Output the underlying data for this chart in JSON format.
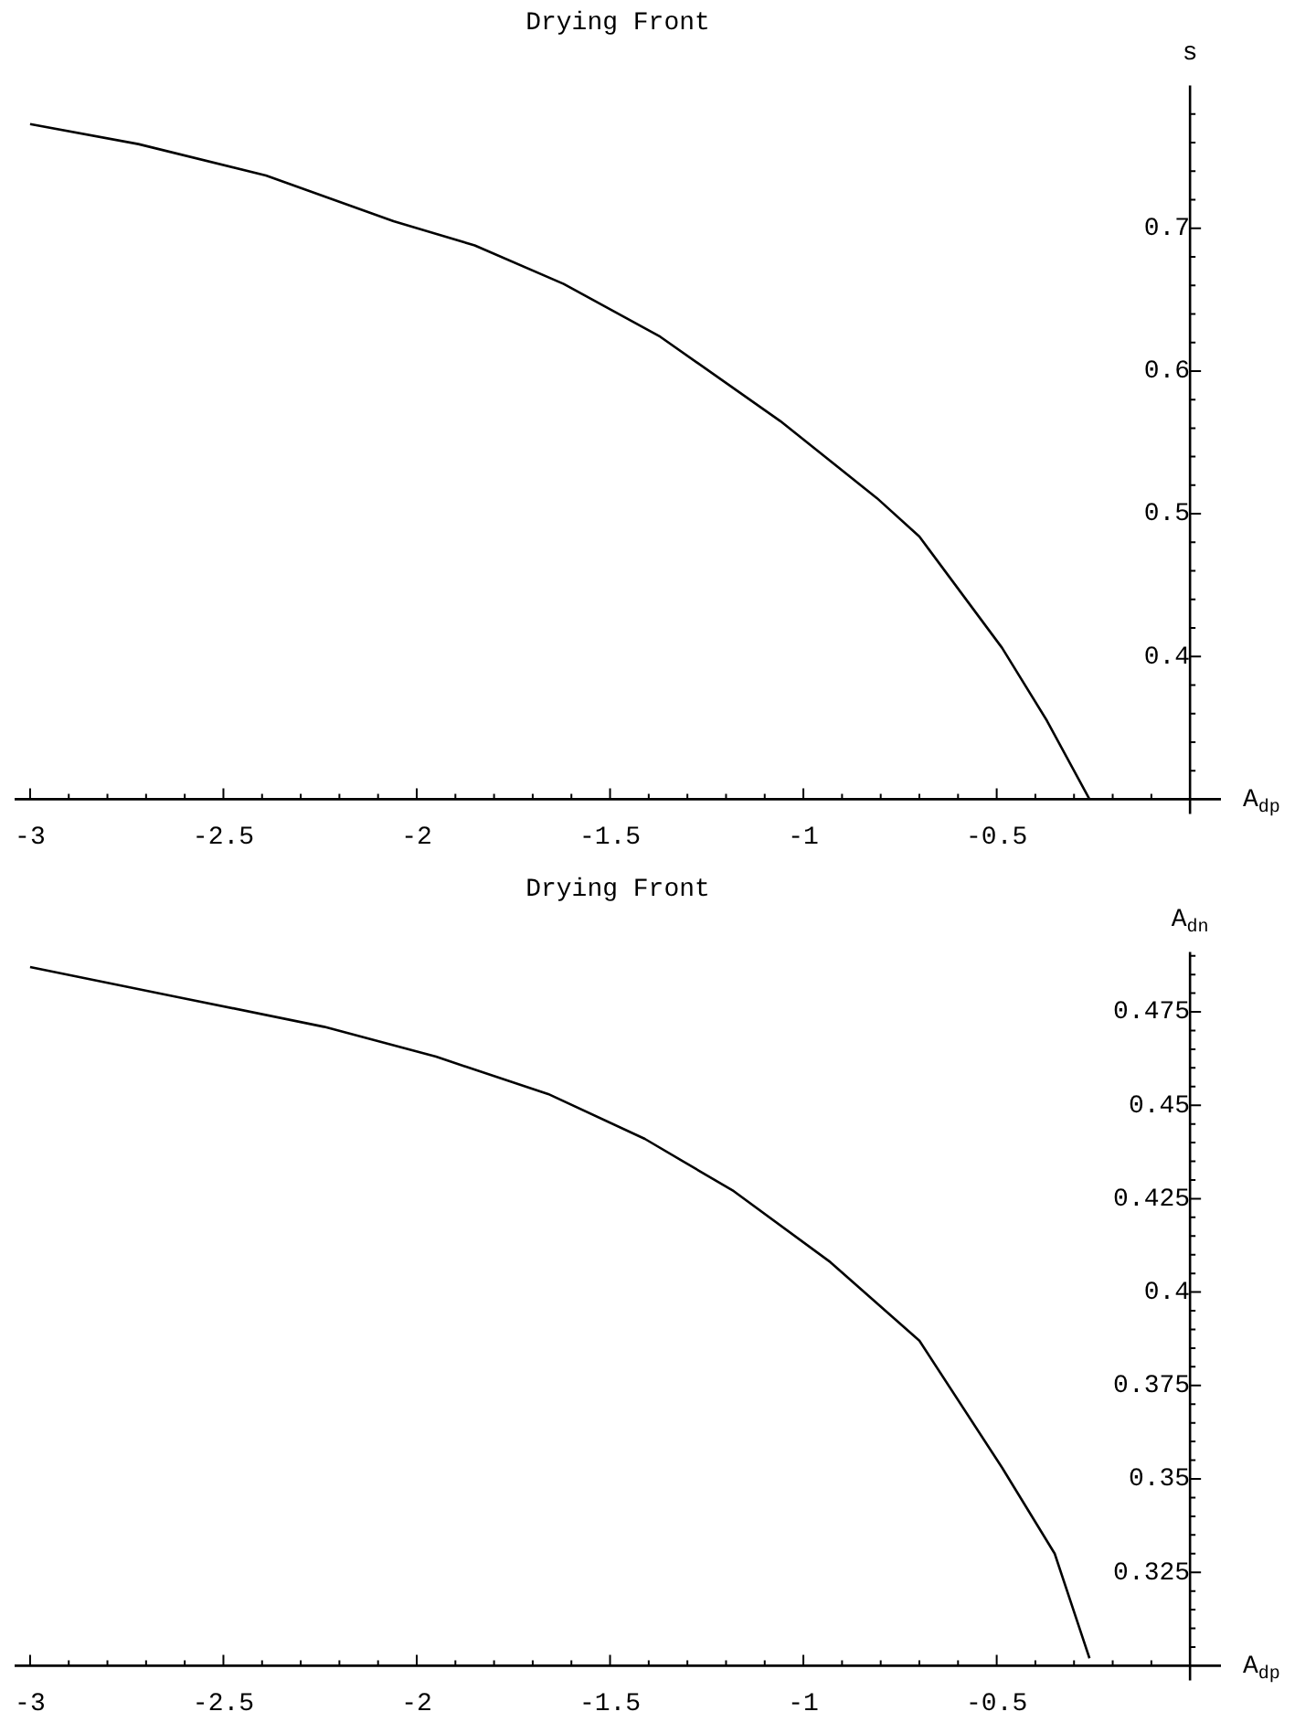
{
  "chart_data": [
    {
      "type": "line",
      "title": "Drying Front",
      "xlabel": "A$_{dp}$",
      "ylabel": "s",
      "x": [
        -3,
        -2.72,
        -2.39,
        -2.06,
        -1.85,
        -1.62,
        -1.37,
        -1.06,
        -0.81,
        -0.7,
        -0.486,
        -0.37,
        -0.26
      ],
      "series": [
        {
          "color": "#000000",
          "values": [
            0.773,
            0.759,
            0.737,
            0.705,
            0.688,
            0.661,
            0.624,
            0.565,
            0.511,
            0.484,
            0.406,
            0.355,
            0.3
          ]
        }
      ],
      "xlim": [
        -3.04,
        0.08
      ],
      "ylim": [
        0.3,
        0.8
      ],
      "xticks": [
        -3,
        {
          "value": -2.9,
          "label": null
        },
        {
          "value": -2.8,
          "label": null
        },
        {
          "value": -2.7,
          "label": null
        },
        {
          "value": -2.6,
          "label": null
        },
        -2.5,
        {
          "value": -2.4,
          "label": null
        },
        {
          "value": -2.3,
          "label": null
        },
        {
          "value": -2.2,
          "label": null
        },
        {
          "value": -2.1,
          "label": null
        },
        -2,
        {
          "value": -1.9,
          "label": null
        },
        {
          "value": -1.8,
          "label": null
        },
        {
          "value": -1.7,
          "label": null
        },
        {
          "value": -1.6,
          "label": null
        },
        -1.5,
        {
          "value": -1.4,
          "label": null
        },
        {
          "value": -1.3,
          "label": null
        },
        {
          "value": -1.2,
          "label": null
        },
        {
          "value": -1.1,
          "label": null
        },
        -1,
        {
          "value": -0.9,
          "label": null
        },
        {
          "value": -0.8,
          "label": null
        },
        {
          "value": -0.7,
          "label": null
        },
        {
          "value": -0.6,
          "label": null
        },
        -0.5,
        {
          "value": -0.4,
          "label": null
        },
        {
          "value": -0.3,
          "label": null
        },
        {
          "value": -0.2,
          "label": null
        },
        {
          "value": -0.1,
          "label": null
        }
      ],
      "yticks": [
        {
          "value": 0.32,
          "label": null
        },
        {
          "value": 0.34,
          "label": null
        },
        {
          "value": 0.36,
          "label": null
        },
        {
          "value": 0.38,
          "label": null
        },
        0.4,
        {
          "value": 0.42,
          "label": null
        },
        {
          "value": 0.44,
          "label": null
        },
        {
          "value": 0.46,
          "label": null
        },
        {
          "value": 0.48,
          "label": null
        },
        0.5,
        {
          "value": 0.52,
          "label": null
        },
        {
          "value": 0.54,
          "label": null
        },
        {
          "value": 0.56,
          "label": null
        },
        {
          "value": 0.58,
          "label": null
        },
        0.6,
        {
          "value": 0.62,
          "label": null
        },
        {
          "value": 0.64,
          "label": null
        },
        {
          "value": 0.66,
          "label": null
        },
        {
          "value": 0.68,
          "label": null
        },
        0.7,
        {
          "value": 0.72,
          "label": null
        },
        {
          "value": 0.74,
          "label": null
        },
        {
          "value": 0.76,
          "label": null
        },
        {
          "value": 0.78,
          "label": null
        }
      ],
      "grid": false,
      "legend": false,
      "marker": "none",
      "line_style": "solid"
    },
    {
      "type": "line",
      "title": "Drying Front",
      "xlabel": "A$_{dp}$",
      "ylabel": "A$_{dn}$",
      "x": [
        -3,
        -2.62,
        -2.24,
        -1.95,
        -1.66,
        -1.41,
        -1.18,
        -0.93,
        -0.7,
        -0.486,
        -0.35,
        -0.26
      ],
      "series": [
        {
          "color": "#000000",
          "values": [
            0.487,
            0.479,
            0.471,
            0.463,
            0.453,
            0.441,
            0.427,
            0.408,
            0.387,
            0.353,
            0.33,
            0.302
          ]
        }
      ],
      "xlim": [
        -3.04,
        0.08
      ],
      "ylim": [
        0.3,
        0.491
      ],
      "xticks": [
        -3,
        {
          "value": -2.9,
          "label": null
        },
        {
          "value": -2.8,
          "label": null
        },
        {
          "value": -2.7,
          "label": null
        },
        {
          "value": -2.6,
          "label": null
        },
        -2.5,
        {
          "value": -2.4,
          "label": null
        },
        {
          "value": -2.3,
          "label": null
        },
        {
          "value": -2.2,
          "label": null
        },
        {
          "value": -2.1,
          "label": null
        },
        -2,
        {
          "value": -1.9,
          "label": null
        },
        {
          "value": -1.8,
          "label": null
        },
        {
          "value": -1.7,
          "label": null
        },
        {
          "value": -1.6,
          "label": null
        },
        -1.5,
        {
          "value": -1.4,
          "label": null
        },
        {
          "value": -1.3,
          "label": null
        },
        {
          "value": -1.2,
          "label": null
        },
        {
          "value": -1.1,
          "label": null
        },
        -1,
        {
          "value": -0.9,
          "label": null
        },
        {
          "value": -0.8,
          "label": null
        },
        {
          "value": -0.7,
          "label": null
        },
        {
          "value": -0.6,
          "label": null
        },
        -0.5,
        {
          "value": -0.4,
          "label": null
        },
        {
          "value": -0.3,
          "label": null
        },
        {
          "value": -0.2,
          "label": null
        },
        {
          "value": -0.1,
          "label": null
        }
      ],
      "yticks": [
        {
          "value": 0.305,
          "label": null
        },
        {
          "value": 0.31,
          "label": null
        },
        {
          "value": 0.315,
          "label": null
        },
        {
          "value": 0.32,
          "label": null
        },
        0.325,
        {
          "value": 0.33,
          "label": null
        },
        {
          "value": 0.335,
          "label": null
        },
        {
          "value": 0.34,
          "label": null
        },
        {
          "value": 0.345,
          "label": null
        },
        0.35,
        {
          "value": 0.355,
          "label": null
        },
        {
          "value": 0.36,
          "label": null
        },
        {
          "value": 0.365,
          "label": null
        },
        {
          "value": 0.37,
          "label": null
        },
        0.375,
        {
          "value": 0.38,
          "label": null
        },
        {
          "value": 0.385,
          "label": null
        },
        {
          "value": 0.39,
          "label": null
        },
        {
          "value": 0.395,
          "label": null
        },
        0.4,
        {
          "value": 0.405,
          "label": null
        },
        {
          "value": 0.41,
          "label": null
        },
        {
          "value": 0.415,
          "label": null
        },
        {
          "value": 0.42,
          "label": null
        },
        0.425,
        {
          "value": 0.43,
          "label": null
        },
        {
          "value": 0.435,
          "label": null
        },
        {
          "value": 0.44,
          "label": null
        },
        {
          "value": 0.445,
          "label": null
        },
        0.45,
        {
          "value": 0.455,
          "label": null
        },
        {
          "value": 0.46,
          "label": null
        },
        {
          "value": 0.465,
          "label": null
        },
        {
          "value": 0.47,
          "label": null
        },
        0.475,
        {
          "value": 0.48,
          "label": null
        },
        {
          "value": 0.485,
          "label": null
        },
        {
          "value": 0.49,
          "label": null
        }
      ],
      "grid": false,
      "legend": false,
      "marker": "none",
      "line_style": "solid"
    }
  ]
}
